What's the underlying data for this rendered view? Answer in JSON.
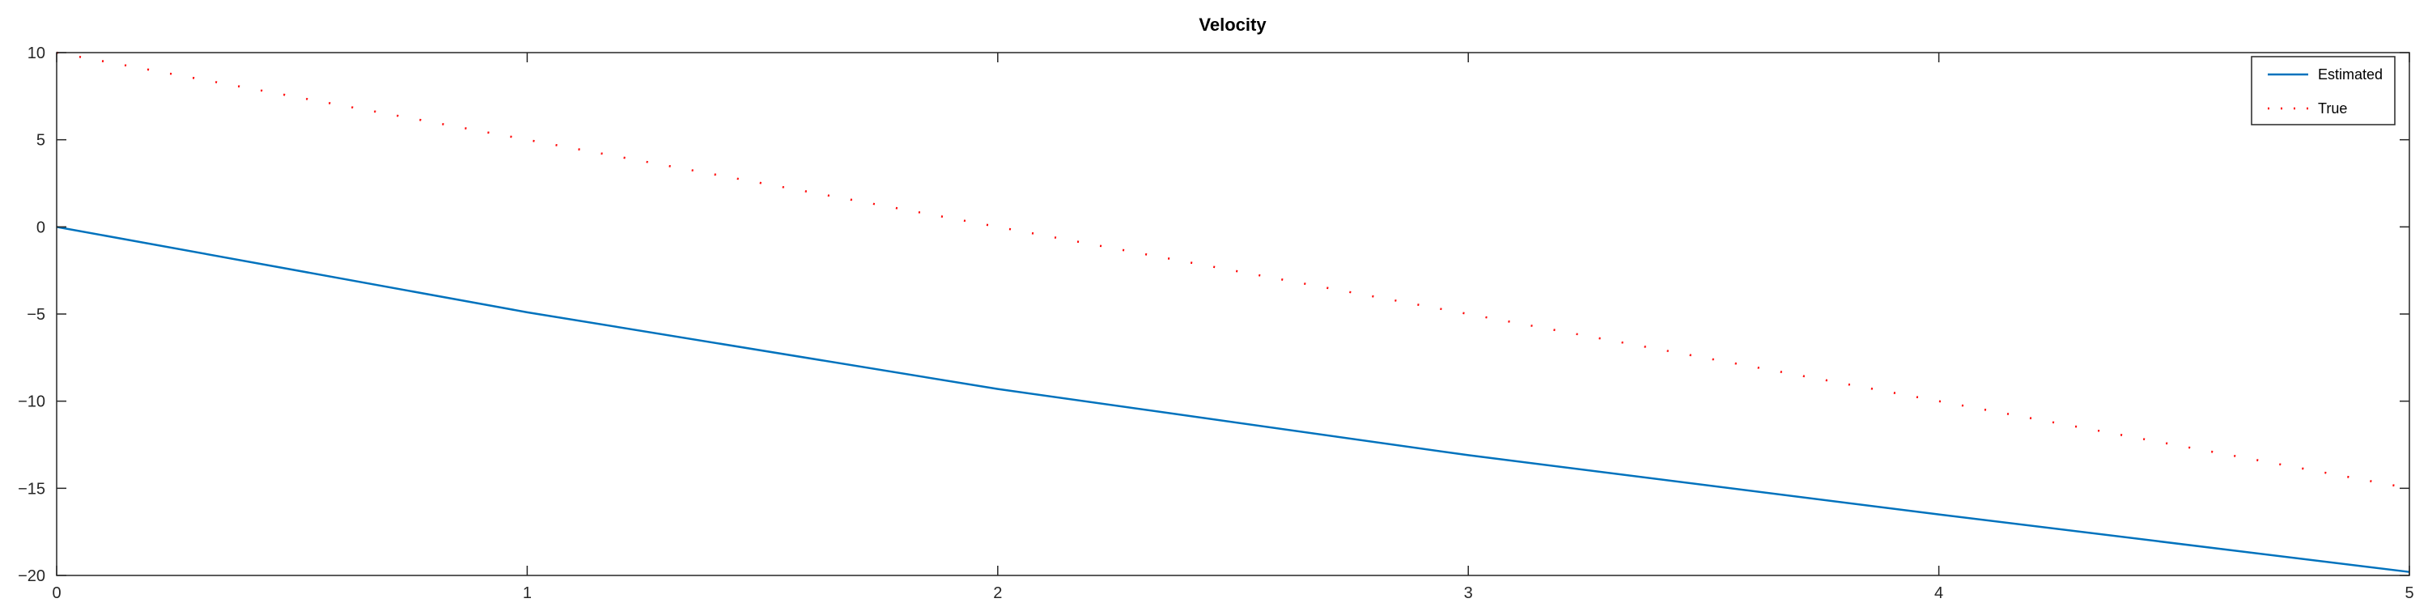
{
  "chart_data": {
    "type": "line",
    "title": "Velocity",
    "xlabel": "",
    "ylabel": "",
    "xlim": [
      0,
      5
    ],
    "ylim": [
      -20,
      10
    ],
    "xticks": [
      0,
      1,
      2,
      3,
      4,
      5
    ],
    "yticks": [
      10,
      5,
      0,
      -5,
      -10,
      -15,
      -20
    ],
    "xtick_labels": [
      "0",
      "1",
      "2",
      "3",
      "4",
      "5"
    ],
    "ytick_labels": [
      "10",
      "5",
      "0",
      "−5",
      "−10",
      "−15",
      "−20"
    ],
    "grid": false,
    "legend_position": "top-right",
    "series": [
      {
        "name": "Estimated",
        "style": "solid",
        "color": "#0072BD",
        "x": [
          0,
          1,
          2,
          3,
          4,
          5
        ],
        "y": [
          0,
          -4.9,
          -9.3,
          -13.1,
          -16.5,
          -19.8
        ]
      },
      {
        "name": "True",
        "style": "dotted",
        "color": "#FF0000",
        "x": [
          0,
          5
        ],
        "y": [
          10,
          -15
        ]
      }
    ]
  }
}
